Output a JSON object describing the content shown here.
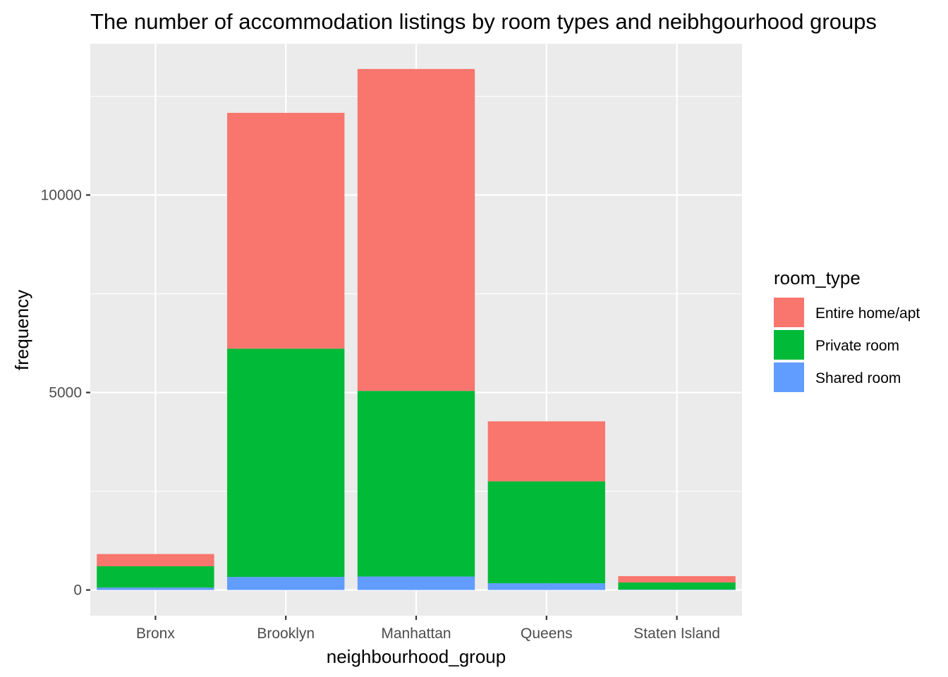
{
  "chart_data": {
    "type": "bar",
    "stacked": true,
    "title": "The number of accommodation listings by room types and neibhgourhood groups",
    "xlabel": "neighbourhood_group",
    "ylabel": "frequency",
    "categories": [
      "Bronx",
      "Brooklyn",
      "Manhattan",
      "Queens",
      "Staten Island"
    ],
    "series": [
      {
        "name": "Shared room",
        "color": "#619CFF",
        "values": [
          60,
          330,
          340,
          170,
          10
        ]
      },
      {
        "name": "Private room",
        "color": "#00BA38",
        "values": [
          540,
          5780,
          4700,
          2580,
          180
        ]
      },
      {
        "name": "Entire home/apt",
        "color": "#F8766D",
        "values": [
          310,
          5970,
          8150,
          1520,
          160
        ]
      }
    ],
    "ylim": [
      -650,
      13830
    ],
    "yticks": [
      0,
      5000,
      10000
    ],
    "grid": true,
    "legend": {
      "title": "room_type",
      "position": "right",
      "order": [
        "Entire home/apt",
        "Private room",
        "Shared room"
      ]
    },
    "panel_color": "#EBEBEB",
    "grid_color": "#FFFFFF"
  }
}
